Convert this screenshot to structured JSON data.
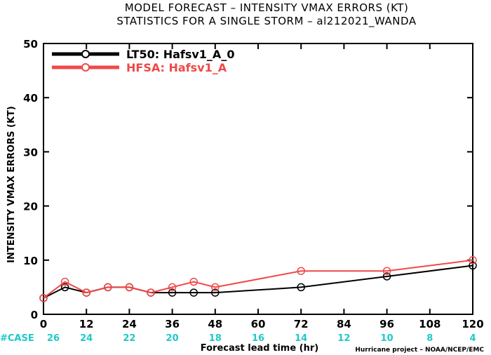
{
  "chart_data": {
    "type": "line",
    "title_lines": [
      "MODEL FORECAST – INTENSITY VMAX ERRORS (KT)",
      "STATISTICS FOR A SINGLE STORM – al212021_WANDA"
    ],
    "xlabel": "Forecast lead time (hr)",
    "ylabel": "INTENSITY VMAX ERRORS (KT)",
    "xlim": [
      0,
      120
    ],
    "ylim": [
      0,
      50
    ],
    "x_ticks": [
      0,
      12,
      24,
      36,
      48,
      60,
      72,
      84,
      96,
      108,
      120
    ],
    "y_ticks": [
      0,
      10,
      20,
      30,
      40,
      50
    ],
    "case_label": "#CASE",
    "case_x": [
      0,
      12,
      24,
      36,
      48,
      60,
      72,
      84,
      96,
      108,
      120
    ],
    "case_counts": [
      "26",
      "24",
      "22",
      "20",
      "18",
      "16",
      "14",
      "12",
      "10",
      "8",
      "4"
    ],
    "legend_position": "top-left",
    "series": [
      {
        "name": "LT50: Hafsv1_A_0",
        "color": "#000000",
        "x": [
          0,
          6,
          12,
          18,
          24,
          30,
          36,
          42,
          48,
          72,
          96,
          120
        ],
        "y": [
          3,
          5,
          4,
          5,
          5,
          4,
          4,
          4,
          4,
          5,
          7,
          9
        ]
      },
      {
        "name": "HFSA: Hafsv1_A",
        "color": "#f04848",
        "x": [
          0,
          6,
          12,
          18,
          24,
          30,
          36,
          42,
          48,
          72,
          96,
          120
        ],
        "y": [
          3,
          6,
          4,
          5,
          5,
          4,
          5,
          6,
          5,
          8,
          8,
          10
        ]
      }
    ],
    "credit": "Hurricane project – NOAA/NCEP/EMC"
  }
}
